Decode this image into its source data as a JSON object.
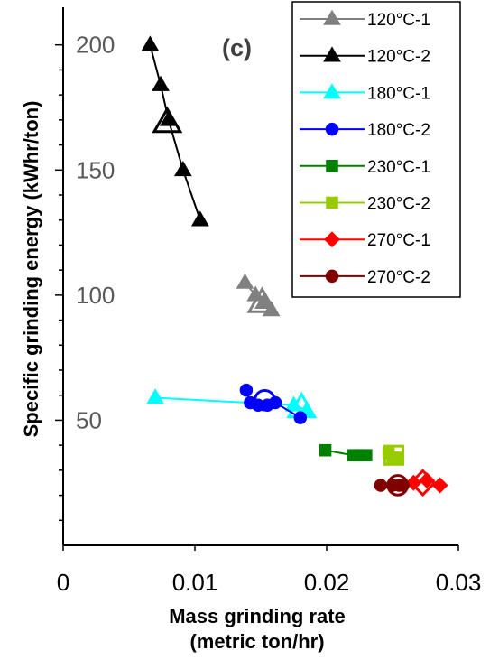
{
  "chart_data": {
    "type": "scatter",
    "title": "",
    "panel_label": "(c)",
    "xlabel_lines": [
      "Mass grinding rate",
      "(metric ton/hr)"
    ],
    "ylabel": "Specific grinding energy (kWhr/ton)",
    "xlim": [
      0,
      0.03
    ],
    "ylim": [
      0,
      210
    ],
    "x_ticks": [
      {
        "value": 0,
        "label": "0"
      },
      {
        "value": 0.01,
        "label": "0.01"
      },
      {
        "value": 0.02,
        "label": "0.02"
      },
      {
        "value": 0.03,
        "label": "0.03"
      }
    ],
    "y_ticks": [
      {
        "value": 50,
        "label": "50"
      },
      {
        "value": 100,
        "label": "100"
      },
      {
        "value": 150,
        "label": "150"
      },
      {
        "value": 200,
        "label": "200"
      }
    ],
    "legend_position": "top-right",
    "series": [
      {
        "name": "120°C-1",
        "color": "#808080",
        "marker": "triangle",
        "points": [
          [
            0.0138,
            105
          ],
          [
            0.0146,
            100
          ],
          [
            0.0152,
            97
          ],
          [
            0.0158,
            94
          ]
        ],
        "hollow": [
          [
            0.0151,
            97
          ]
        ]
      },
      {
        "name": "120°C-2",
        "color": "#000000",
        "marker": "triangle",
        "points": [
          [
            0.0066,
            200
          ],
          [
            0.0074,
            184
          ],
          [
            0.008,
            170
          ],
          [
            0.0091,
            150
          ],
          [
            0.0104,
            130
          ]
        ],
        "hollow": [
          [
            0.0079,
            169
          ]
        ]
      },
      {
        "name": "180°C-1",
        "color": "#00FFFF",
        "marker": "triangle",
        "points": [
          [
            0.007,
            59
          ],
          [
            0.0175,
            56
          ],
          [
            0.0185,
            54
          ]
        ],
        "hollow": [
          [
            0.0181,
            55
          ]
        ]
      },
      {
        "name": "180°C-2",
        "color": "#0000FF",
        "marker": "circle",
        "points": [
          [
            0.0139,
            62
          ],
          [
            0.0142,
            57
          ],
          [
            0.0148,
            56
          ],
          [
            0.0155,
            56
          ],
          [
            0.0161,
            57
          ],
          [
            0.018,
            51
          ]
        ],
        "hollow": [
          [
            0.0153,
            58
          ]
        ]
      },
      {
        "name": "230°C-1",
        "color": "#008000",
        "marker": "square",
        "points": [
          [
            0.0199,
            38
          ],
          [
            0.022,
            36
          ],
          [
            0.0226,
            36
          ],
          [
            0.023,
            36
          ]
        ],
        "hollow": []
      },
      {
        "name": "230°C-2",
        "color": "#99CC00",
        "marker": "square",
        "points": [
          [
            0.0247,
            37
          ],
          [
            0.025,
            35
          ],
          [
            0.0254,
            35
          ]
        ],
        "hollow": [
          [
            0.0251,
            36
          ]
        ]
      },
      {
        "name": "270°C-1",
        "color": "#FF0000",
        "marker": "diamond",
        "points": [
          [
            0.0266,
            25
          ],
          [
            0.0276,
            26
          ],
          [
            0.0286,
            24
          ]
        ],
        "hollow": [
          [
            0.0273,
            25
          ]
        ]
      },
      {
        "name": "270°C-2",
        "color": "#800000",
        "marker": "circle",
        "points": [
          [
            0.0241,
            24
          ],
          [
            0.025,
            24
          ],
          [
            0.0255,
            24
          ],
          [
            0.0258,
            24
          ]
        ],
        "hollow": [
          [
            0.0254,
            24
          ]
        ]
      }
    ]
  }
}
